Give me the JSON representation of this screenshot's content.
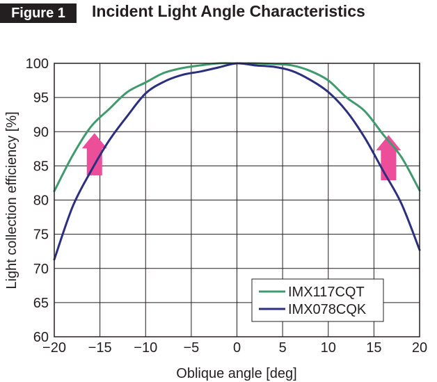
{
  "figure_label": "Figure 1",
  "figure_title": "Incident Light Angle Characteristics",
  "chart_data": {
    "type": "line",
    "title": "Incident Light Angle Characteristics",
    "xlabel": "Oblique angle [deg]",
    "ylabel": "Light collection efficiency [%]",
    "xlim": [
      -20,
      20
    ],
    "ylim": [
      60,
      100
    ],
    "xticks": [
      -20,
      -15,
      -10,
      -5,
      0,
      5,
      10,
      15,
      20
    ],
    "xtick_labels": [
      "−20",
      "−15",
      "−10",
      "−5",
      "0",
      "5",
      "10",
      "15",
      "20"
    ],
    "yticks": [
      60,
      65,
      70,
      75,
      80,
      85,
      90,
      95,
      100
    ],
    "ytick_labels": [
      "60",
      "65",
      "70",
      "75",
      "80",
      "85",
      "90",
      "95",
      "100"
    ],
    "grid": true,
    "legend_position": "bottom-right",
    "series": [
      {
        "name": "IMX117CQT",
        "color": "#3f9b6e",
        "x": [
          -20,
          -18,
          -16,
          -14,
          -12,
          -10,
          -8,
          -6,
          -4,
          -2,
          0,
          2,
          4,
          6,
          8,
          10,
          12,
          14,
          16,
          18,
          20
        ],
        "y": [
          81.3,
          86.5,
          90.7,
          93.3,
          95.8,
          97.2,
          98.6,
          99.3,
          99.7,
          100,
          100,
          100,
          99.9,
          99.7,
          98.9,
          97.5,
          95.0,
          93.0,
          89.6,
          86.3,
          81.4
        ]
      },
      {
        "name": "IMX078CQK",
        "color": "#2b2f7f",
        "x": [
          -20,
          -18,
          -16,
          -14,
          -12,
          -10,
          -8,
          -6,
          -4,
          -2,
          0,
          2,
          4,
          6,
          8,
          10,
          12,
          14,
          16,
          18,
          20
        ],
        "y": [
          71.3,
          79.0,
          84.2,
          88.7,
          92.3,
          95.6,
          97.3,
          98.3,
          98.8,
          99.4,
          100,
          99.7,
          99.5,
          98.9,
          97.6,
          95.8,
          93.0,
          89.1,
          84.3,
          79.5,
          72.7
        ]
      }
    ],
    "annotations": [
      {
        "shape": "up-arrow",
        "color": "#ec4e9a",
        "x": -15.6,
        "y_bottom": 83.6,
        "y_top": 89.8
      },
      {
        "shape": "up-arrow",
        "color": "#ec4e9a",
        "x": 16.6,
        "y_bottom": 82.9,
        "y_top": 89.5
      }
    ]
  }
}
